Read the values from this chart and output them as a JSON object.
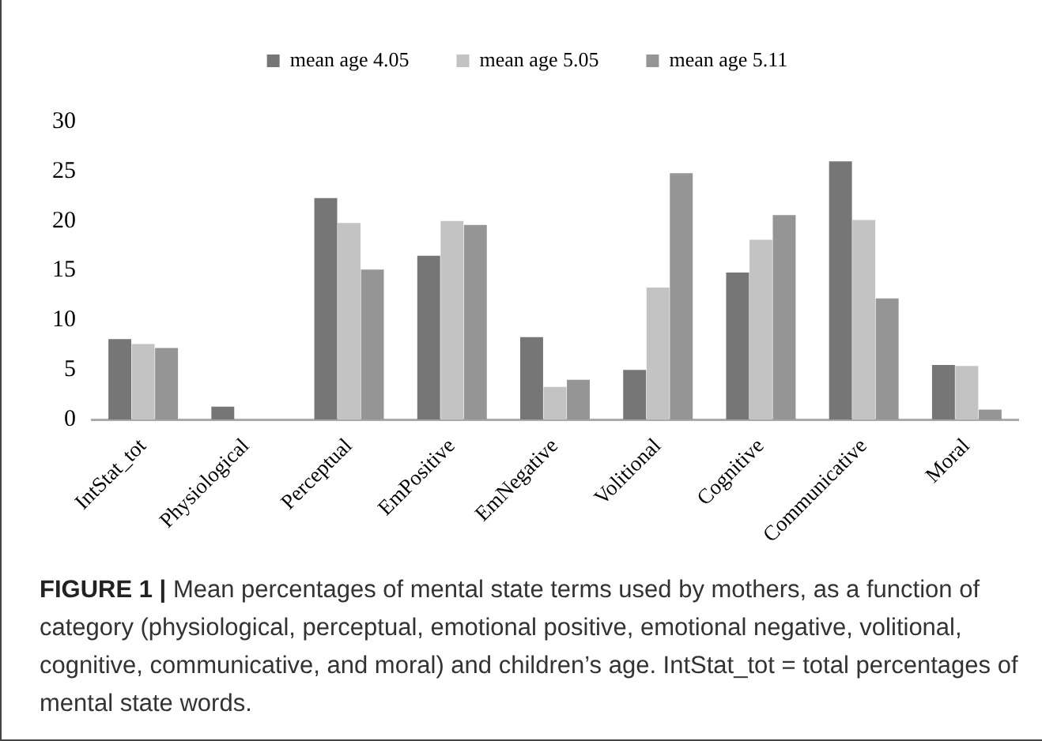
{
  "chart_data": {
    "type": "bar",
    "categories": [
      "IntStat_tot",
      "Physiological",
      "Perceptual",
      "EmPositive",
      "EmNegative",
      "Volitional",
      "Cognitive",
      "Communicative",
      "Moral"
    ],
    "series": [
      {
        "name": "mean age 4.05",
        "color": "#767676",
        "values": [
          8.1,
          1.3,
          22.3,
          16.5,
          8.3,
          5.0,
          14.8,
          26.0,
          5.5
        ]
      },
      {
        "name": "mean age 5.05",
        "color": "#c3c3c3",
        "values": [
          7.6,
          0,
          19.8,
          20.0,
          3.3,
          13.3,
          18.1,
          20.1,
          5.4
        ]
      },
      {
        "name": "mean age 5.11",
        "color": "#959595",
        "values": [
          7.2,
          0,
          15.1,
          19.6,
          4.0,
          24.8,
          20.6,
          12.2,
          1.0
        ]
      }
    ],
    "ylim": [
      0,
      30
    ],
    "yticks": [
      0,
      5,
      10,
      15,
      20,
      25,
      30
    ],
    "grid": false,
    "legend": "top",
    "annotations": [
      "FIGURE 1 | Mean percentages of mental state terms used by mothers, as a function of category (physiological, perceptual, emotional positive, emotional negative, volitional, cognitive, communicative, and moral) and children’s age. IntStat_tot = total percentages of mental state words."
    ]
  }
}
